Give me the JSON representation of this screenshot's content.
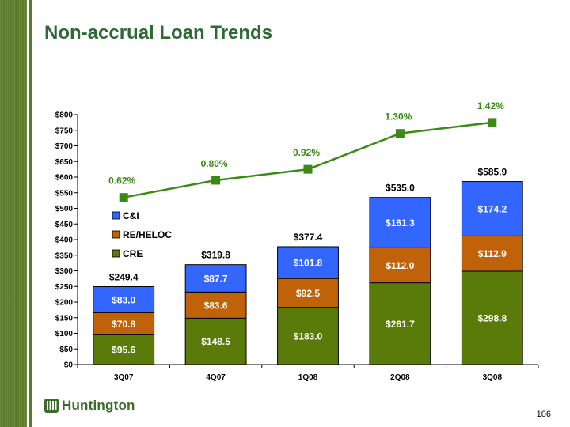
{
  "slide": {
    "title": "Non-accrual Loan Trends",
    "page_number": "106",
    "logo_text": "Huntington"
  },
  "colors": {
    "cre": "#5a7a0a",
    "re_heloc": "#c0620a",
    "ci": "#3366ff",
    "line": "#3a8a14",
    "title": "#2e6b34",
    "sidebar": "#5c7a2a"
  },
  "chart_data": {
    "type": "bar",
    "stacked": true,
    "categories": [
      "3Q07",
      "4Q07",
      "1Q08",
      "2Q08",
      "3Q08"
    ],
    "series": [
      {
        "name": "CRE",
        "values": [
          95.6,
          148.5,
          183.0,
          261.7,
          298.8
        ],
        "labels": [
          "$95.6",
          "$148.5",
          "$183.0",
          "$261.7",
          "$298.8"
        ]
      },
      {
        "name": "RE/HELOC",
        "values": [
          70.8,
          83.6,
          92.5,
          112.0,
          112.9
        ],
        "labels": [
          "$70.8",
          "$83.6",
          "$92.5",
          "$112.0",
          "$112.9"
        ]
      },
      {
        "name": "C&I",
        "values": [
          83.0,
          87.7,
          101.8,
          161.3,
          174.2
        ],
        "labels": [
          "$83.0",
          "$87.7",
          "$101.8",
          "$161.3",
          "$174.2"
        ]
      }
    ],
    "totals": [
      "$249.4",
      "$319.8",
      "$377.4",
      "$535.0",
      "$585.9"
    ],
    "line_series": {
      "values": [
        0.62,
        0.8,
        0.92,
        1.3,
        1.42
      ],
      "labels": [
        "0.62%",
        "0.80%",
        "0.92%",
        "1.30%",
        "1.42%"
      ],
      "plot_positions": [
        535,
        590,
        625,
        740,
        775
      ]
    },
    "ylim": [
      0,
      800
    ],
    "yticks": [
      0,
      50,
      100,
      150,
      200,
      250,
      300,
      350,
      400,
      450,
      500,
      550,
      600,
      650,
      700,
      750,
      800
    ],
    "ytick_labels": [
      "$0",
      "$50",
      "$100",
      "$150",
      "$200",
      "$250",
      "$300",
      "$350",
      "$400",
      "$450",
      "$500",
      "$550",
      "$600",
      "$650",
      "$700",
      "$750",
      "$800"
    ],
    "legend_order": [
      "C&I",
      "RE/HELOC",
      "CRE"
    ],
    "legend_position": "inside-left",
    "grid": false
  }
}
